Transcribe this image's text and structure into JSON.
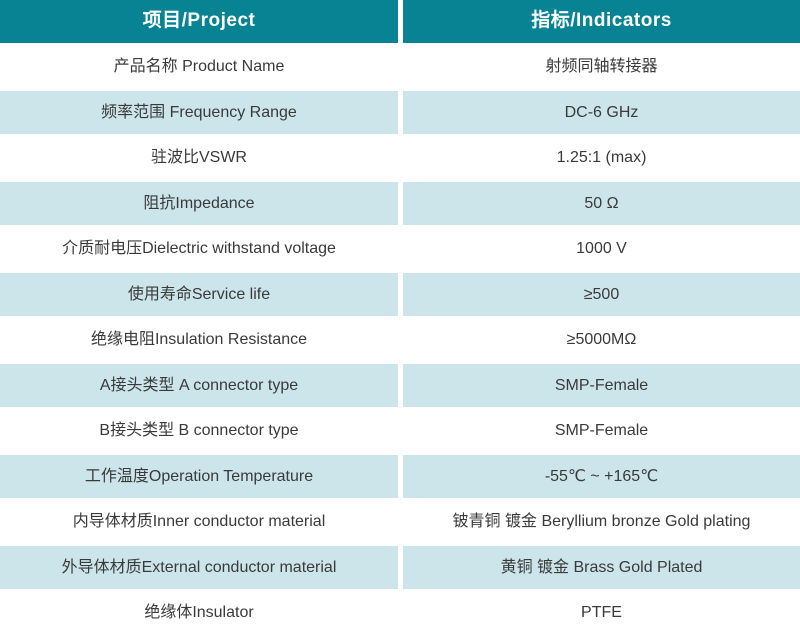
{
  "table": {
    "title": "RF coaxial adapter specification table",
    "colors": {
      "header_bg": "#088394",
      "tint_bg": "#cce5ea",
      "row_bg": "#ffffff",
      "header_text": "#ffffff",
      "body_text": "#3a3a3a",
      "divider": "#ffffff"
    },
    "header": {
      "project": "项目/Project",
      "indicators": "指标/Indicators"
    },
    "rows": [
      {
        "project": "产品名称 Product Name",
        "indicator": "射频同轴转接器",
        "tint": false
      },
      {
        "project": "频率范围 Frequency Range",
        "indicator": "DC-6 GHz",
        "tint": true
      },
      {
        "project": "驻波比VSWR",
        "indicator": "1.25:1 (max)",
        "tint": false
      },
      {
        "project": "阻抗Impedance",
        "indicator": "50 Ω",
        "tint": true
      },
      {
        "project": "介质耐电压Dielectric withstand voltage",
        "indicator": "1000 V",
        "tint": false
      },
      {
        "project": "使用寿命Service life",
        "indicator": "≥500",
        "tint": true
      },
      {
        "project": "绝缘电阻Insulation Resistance",
        "indicator": "≥5000MΩ",
        "tint": false
      },
      {
        "project": "A接头类型 A connector type",
        "indicator": "SMP-Female",
        "tint": true
      },
      {
        "project": "B接头类型 B connector type",
        "indicator": "SMP-Female",
        "tint": false
      },
      {
        "project": "工作温度Operation Temperature",
        "indicator": "-55℃ ~ +165℃",
        "tint": true
      },
      {
        "project": "内导体材质Inner conductor material",
        "indicator": "铍青铜 镀金 Beryllium bronze Gold plating",
        "tint": false
      },
      {
        "project": "外导体材质External conductor material",
        "indicator": "黄铜 镀金 Brass Gold Plated",
        "tint": true
      },
      {
        "project": "绝缘体Insulator",
        "indicator": "PTFE",
        "tint": false
      }
    ]
  }
}
